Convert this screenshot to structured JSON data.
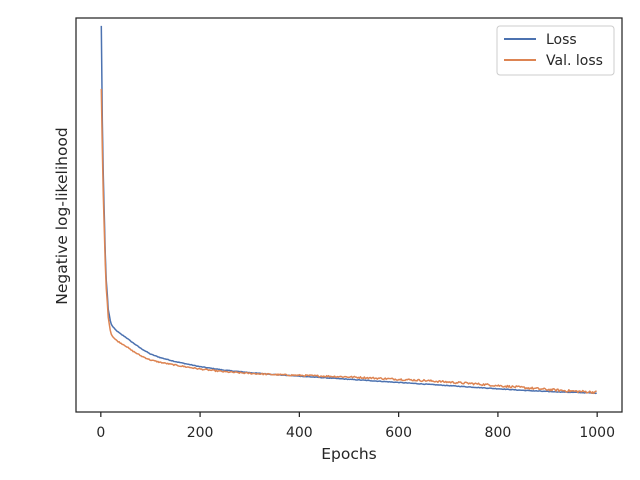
{
  "chart_data": {
    "type": "line",
    "xlabel": "Epochs",
    "ylabel": "Negative log-likelihood",
    "xlim": [
      -50,
      1050
    ],
    "ylim": [
      0.0,
      1.0
    ],
    "y_tick_labels_shown": false,
    "x_ticks": [
      0,
      200,
      400,
      600,
      800,
      1000
    ],
    "x_tick_labels": [
      "0",
      "200",
      "400",
      "600",
      "800",
      "1000"
    ],
    "grid": false,
    "legend_position": "top-right",
    "series": [
      {
        "name": "Loss",
        "color": "#4c72b0",
        "x": [
          1,
          3,
          5,
          8,
          10,
          13,
          15,
          18,
          20,
          25,
          30,
          40,
          50,
          60,
          80,
          100,
          120,
          150,
          200,
          250,
          300,
          350,
          400,
          450,
          500,
          550,
          600,
          650,
          700,
          750,
          800,
          850,
          900,
          950,
          1000
        ],
        "values": [
          0.98,
          0.74,
          0.6,
          0.45,
          0.35,
          0.3,
          0.26,
          0.24,
          0.225,
          0.215,
          0.208,
          0.198,
          0.19,
          0.18,
          0.162,
          0.147,
          0.138,
          0.128,
          0.115,
          0.106,
          0.1,
          0.095,
          0.091,
          0.087,
          0.083,
          0.079,
          0.075,
          0.071,
          0.067,
          0.063,
          0.059,
          0.055,
          0.052,
          0.05,
          0.048
        ]
      },
      {
        "name": "Val. loss",
        "color": "#dd8452",
        "x": [
          1,
          3,
          5,
          8,
          10,
          13,
          15,
          18,
          20,
          25,
          30,
          40,
          50,
          60,
          80,
          100,
          120,
          150,
          200,
          250,
          300,
          350,
          400,
          450,
          500,
          550,
          600,
          650,
          700,
          750,
          800,
          850,
          900,
          950,
          1000
        ],
        "values": [
          0.82,
          0.67,
          0.55,
          0.42,
          0.33,
          0.28,
          0.24,
          0.215,
          0.2,
          0.19,
          0.183,
          0.175,
          0.168,
          0.158,
          0.143,
          0.132,
          0.126,
          0.119,
          0.109,
          0.102,
          0.098,
          0.095,
          0.093,
          0.091,
          0.089,
          0.086,
          0.083,
          0.08,
          0.076,
          0.072,
          0.067,
          0.062,
          0.057,
          0.053,
          0.05
        ]
      }
    ]
  }
}
